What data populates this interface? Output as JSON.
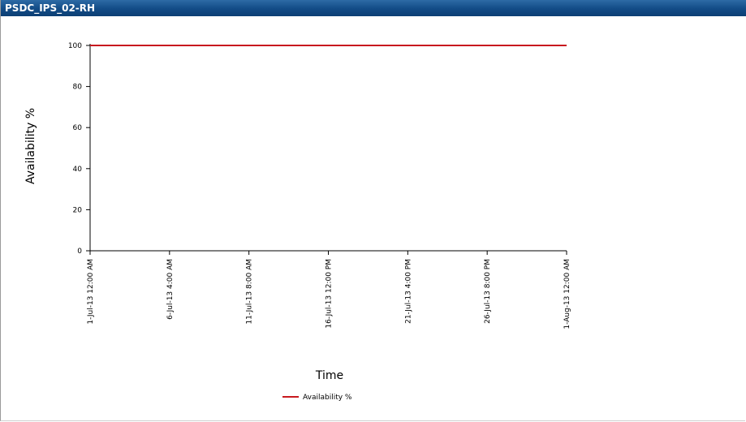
{
  "window": {
    "title": "PSDC_IPS_02-RH"
  },
  "colors": {
    "titlebar": "#124b86",
    "series": "#c8191e",
    "axis": "#000000"
  },
  "chart_data": {
    "type": "line",
    "title": "",
    "xlabel": "Time",
    "ylabel": "Availability %",
    "ylim": [
      0,
      100
    ],
    "yticks": [
      0,
      20,
      40,
      60,
      80,
      100
    ],
    "x_tick_labels": [
      "1-Jul-13 12:00 AM",
      "6-Jul-13 4:00 AM",
      "11-Jul-13 8:00 AM",
      "16-Jul-13 12:00 PM",
      "21-Jul-13 4:00 PM",
      "26-Jul-13 8:00 PM",
      "1-Aug-13 12:00 AM"
    ],
    "grid": false,
    "legend": "bottom-center",
    "series": [
      {
        "name": "Availability %",
        "color": "#c8191e",
        "x": [
          "1-Jul-13 12:00 AM",
          "1-Aug-13 12:00 AM"
        ],
        "values": [
          100,
          100
        ]
      }
    ]
  }
}
